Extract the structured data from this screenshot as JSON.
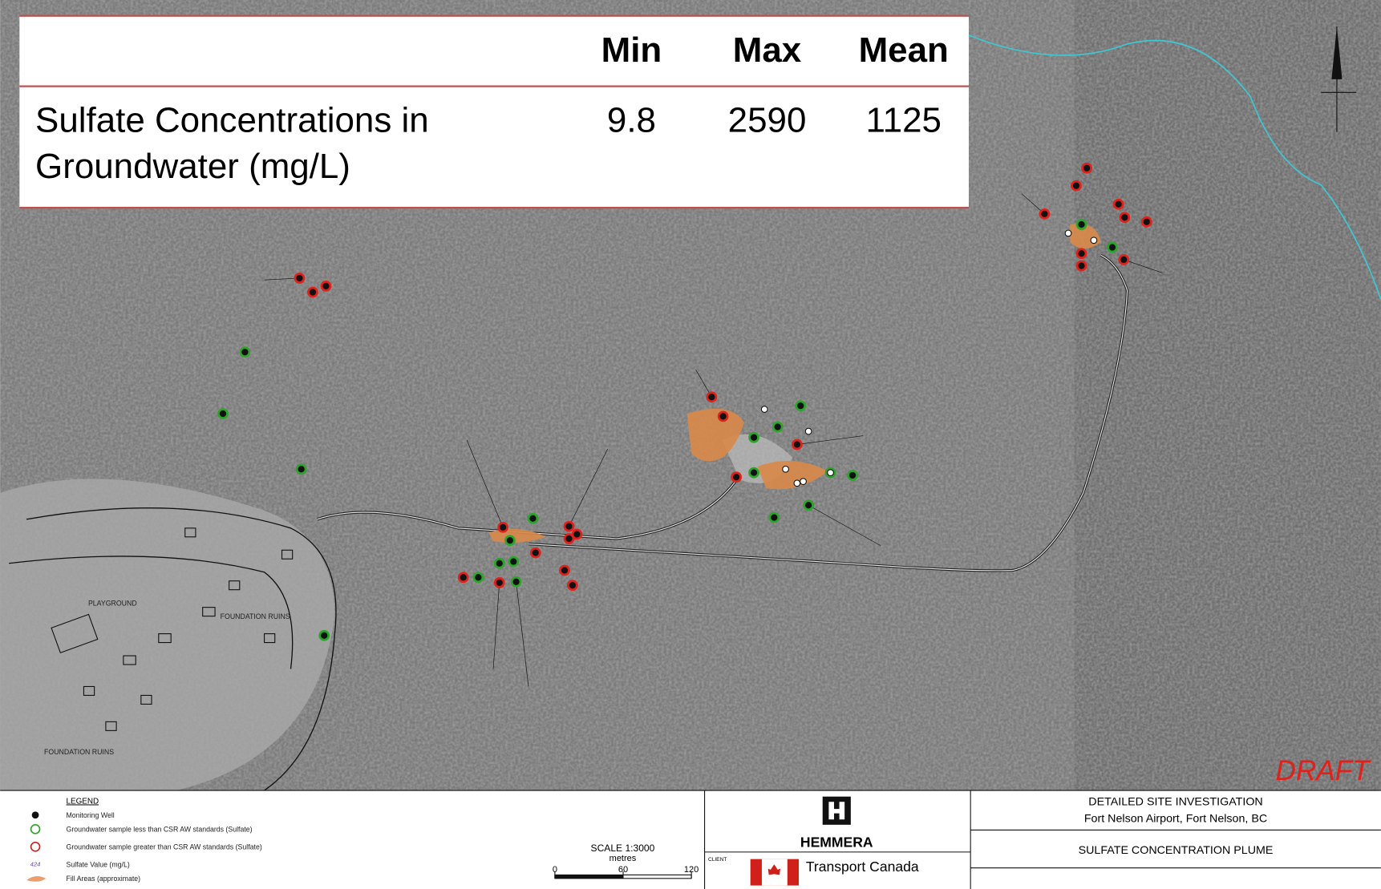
{
  "table": {
    "columns": [
      "Min",
      "Max",
      "Mean"
    ],
    "row": {
      "label_lines": [
        "Sulfate Concentrations in",
        "Groundwater (mg/L)"
      ],
      "values": [
        9.8,
        2590,
        1125
      ]
    }
  },
  "map": {
    "draft": "DRAFT",
    "labels": [
      "PLAYGROUND",
      "FOUNDATION RUINS",
      "FOUNDATION RUINS"
    ]
  },
  "legend": {
    "title": "LEGEND",
    "items": [
      "Monitoring Well",
      "Groundwater sample less than CSR AW standards (Sulfate)",
      "Groundwater sample greater than CSR AW standards (Sulfate)",
      "Sulfate Value (mg/L)",
      "Fill Areas (approximate)"
    ],
    "sample_value": 424
  },
  "scale": {
    "title": "SCALE 1:3000",
    "unit": "metres",
    "ticks": [
      0,
      60,
      120
    ]
  },
  "title_block": {
    "company": "HEMMERA",
    "client_label": "CLIENT",
    "client": "Transport Canada",
    "project": "DETAILED SITE INVESTIGATION",
    "location": "Fort Nelson Airport, Fort Nelson, BC",
    "drawing": "SULFATE CONCENTRATION PLUME"
  }
}
